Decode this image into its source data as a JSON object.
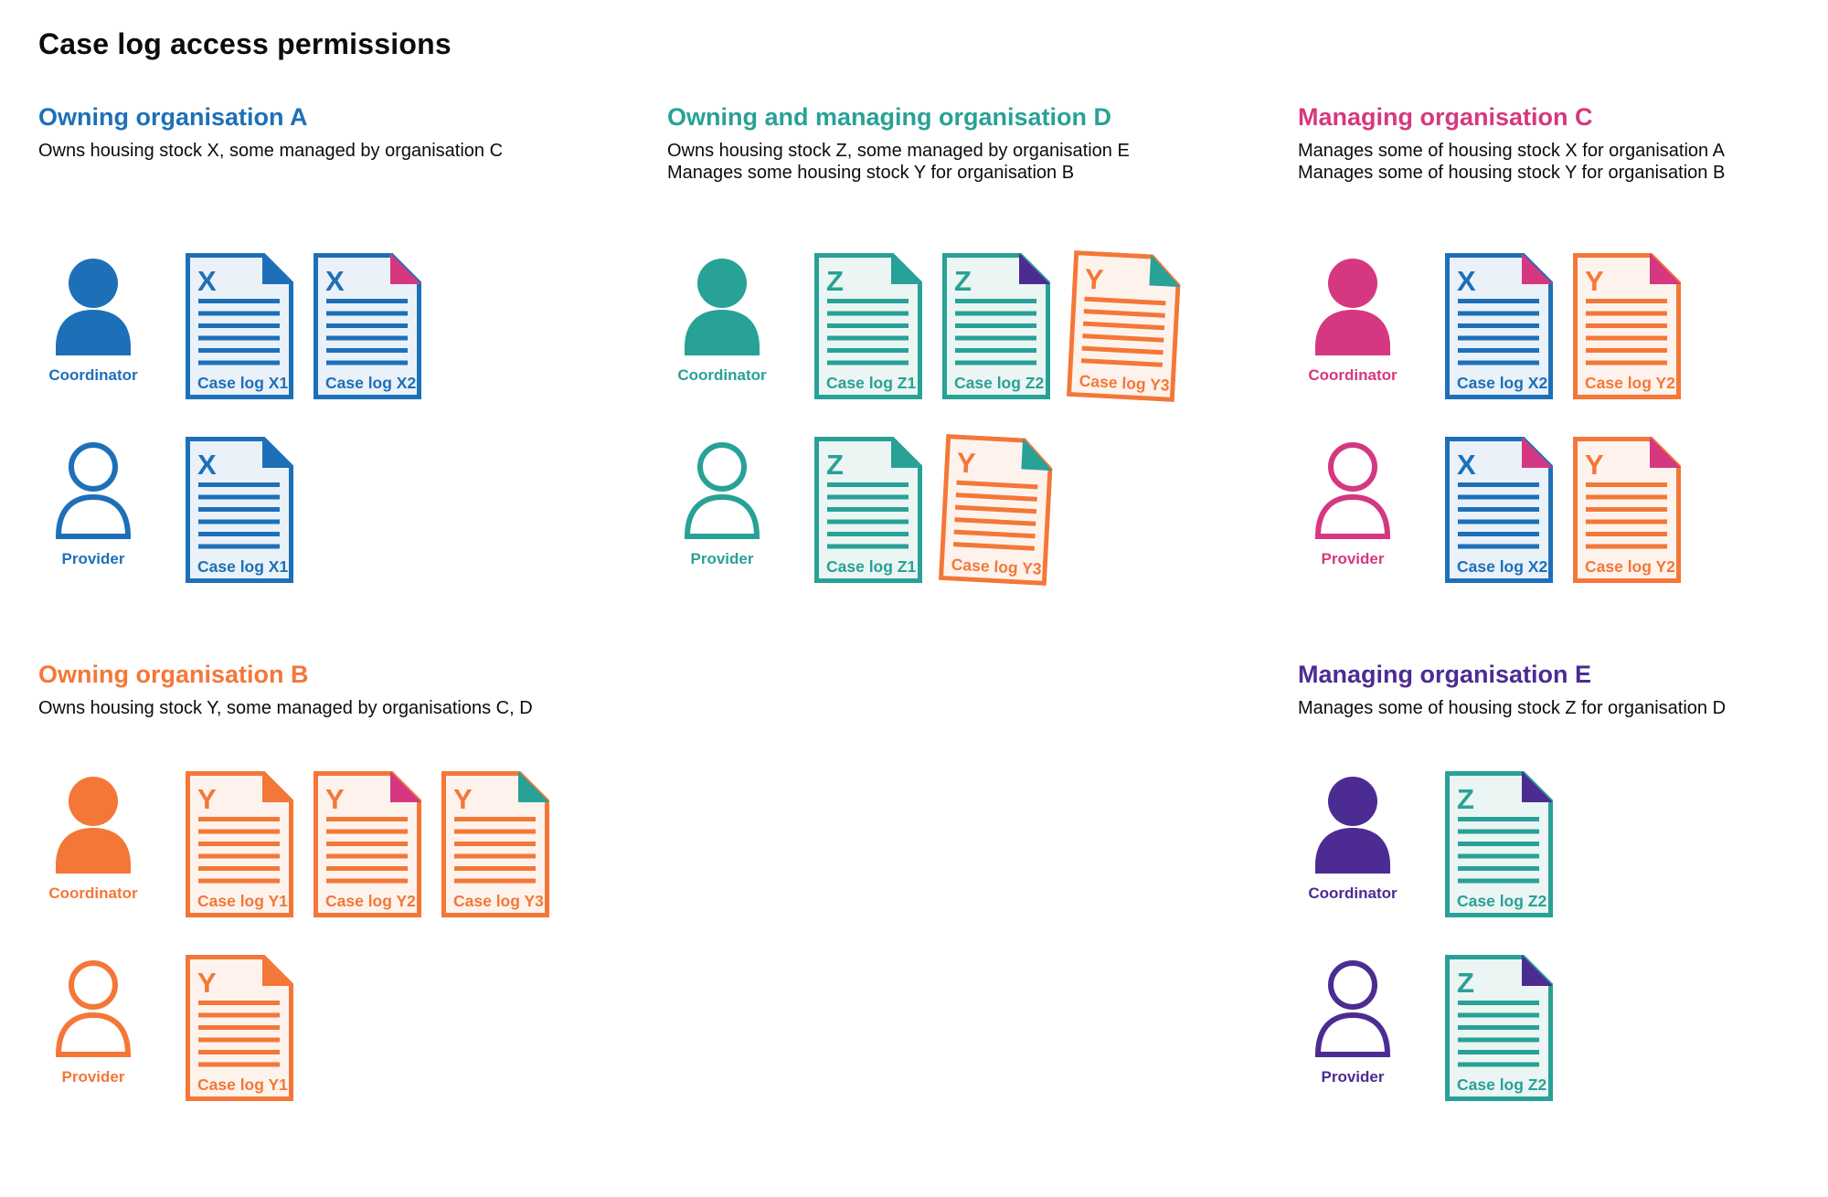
{
  "title": "Case log access permissions",
  "colors": {
    "blue": "#1d70b8",
    "teal": "#28a197",
    "pink": "#d53880",
    "orange": "#f47738",
    "purple": "#4c2c92",
    "ink": "#0b0c0c",
    "blue_tint": "#eaf1f9",
    "teal_tint": "#ebf5f3",
    "orange_tint": "#fdf3ec"
  },
  "sections": [
    {
      "id": "org-a",
      "title": "Owning organisation A",
      "color": "blue",
      "grid": "r1c1",
      "desc": [
        "Owns housing stock X, some managed by organisation C"
      ],
      "rows": [
        {
          "role": "Coordinator",
          "person": "filled",
          "docs": [
            {
              "letter": "X",
              "label": "Case log X1",
              "doc": "blue",
              "corner": "blue"
            },
            {
              "letter": "X",
              "label": "Case log X2",
              "doc": "blue",
              "corner": "pink"
            }
          ]
        },
        {
          "role": "Provider",
          "person": "outline",
          "docs": [
            {
              "letter": "X",
              "label": "Case log X1",
              "doc": "blue",
              "corner": "blue"
            }
          ]
        }
      ]
    },
    {
      "id": "org-d",
      "title": "Owning and managing organisation D",
      "color": "teal",
      "grid": "r1c2",
      "desc": [
        "Owns housing stock Z, some managed by organisation E",
        "Manages some housing stock Y for organisation B"
      ],
      "rows": [
        {
          "role": "Coordinator",
          "person": "filled",
          "docs": [
            {
              "letter": "Z",
              "label": "Case log Z1",
              "doc": "teal",
              "corner": "teal"
            },
            {
              "letter": "Z",
              "label": "Case log Z2",
              "doc": "teal",
              "corner": "purple"
            },
            {
              "letter": "Y",
              "label": "Case log Y3",
              "doc": "orange",
              "corner": "teal",
              "tilt": 3
            }
          ]
        },
        {
          "role": "Provider",
          "person": "outline",
          "docs": [
            {
              "letter": "Z",
              "label": "Case log Z1",
              "doc": "teal",
              "corner": "teal"
            },
            {
              "letter": "Y",
              "label": "Case log Y3",
              "doc": "orange",
              "corner": "teal",
              "tilt": 3
            }
          ]
        }
      ]
    },
    {
      "id": "org-c",
      "title": "Managing organisation C",
      "color": "pink",
      "grid": "r1c3",
      "desc": [
        "Manages some of housing stock X for organisation A",
        "Manages some of housing stock Y for organisation B"
      ],
      "rows": [
        {
          "role": "Coordinator",
          "person": "filled",
          "docs": [
            {
              "letter": "X",
              "label": "Case log X2",
              "doc": "blue",
              "corner": "pink"
            },
            {
              "letter": "Y",
              "label": "Case log Y2",
              "doc": "orange",
              "corner": "pink"
            }
          ]
        },
        {
          "role": "Provider",
          "person": "outline",
          "docs": [
            {
              "letter": "X",
              "label": "Case log X2",
              "doc": "blue",
              "corner": "pink"
            },
            {
              "letter": "Y",
              "label": "Case log Y2",
              "doc": "orange",
              "corner": "pink"
            }
          ]
        }
      ]
    },
    {
      "id": "org-b",
      "title": "Owning organisation B",
      "color": "orange",
      "grid": "r2c1",
      "desc": [
        "Owns housing stock Y, some managed by organisations C, D"
      ],
      "rows": [
        {
          "role": "Coordinator",
          "person": "filled",
          "docs": [
            {
              "letter": "Y",
              "label": "Case log Y1",
              "doc": "orange",
              "corner": "orange"
            },
            {
              "letter": "Y",
              "label": "Case log Y2",
              "doc": "orange",
              "corner": "pink"
            },
            {
              "letter": "Y",
              "label": "Case log Y3",
              "doc": "orange",
              "corner": "teal"
            }
          ]
        },
        {
          "role": "Provider",
          "person": "outline",
          "docs": [
            {
              "letter": "Y",
              "label": "Case log Y1",
              "doc": "orange",
              "corner": "orange"
            }
          ]
        }
      ]
    },
    {
      "id": "org-e",
      "title": "Managing organisation E",
      "color": "purple",
      "grid": "r2c3",
      "desc": [
        "Manages some of housing stock Z for organisation D"
      ],
      "rows": [
        {
          "role": "Coordinator",
          "person": "filled",
          "docs": [
            {
              "letter": "Z",
              "label": "Case log Z2",
              "doc": "teal",
              "corner": "purple"
            }
          ]
        },
        {
          "role": "Provider",
          "person": "outline",
          "docs": [
            {
              "letter": "Z",
              "label": "Case log Z2",
              "doc": "teal",
              "corner": "purple"
            }
          ]
        }
      ]
    }
  ]
}
